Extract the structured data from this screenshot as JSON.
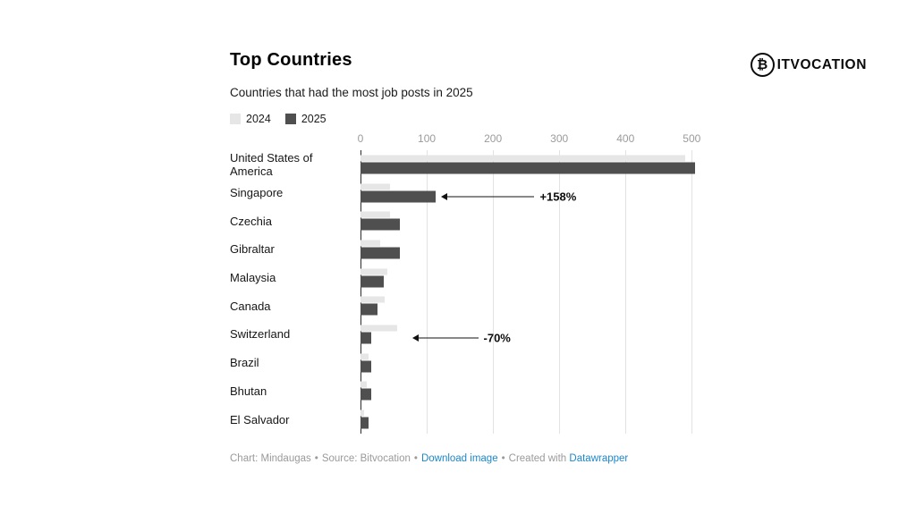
{
  "header": {
    "title": "Top Countries",
    "subtitle": "Countries that had the most job posts in 2025"
  },
  "logo": {
    "symbol": "₿",
    "text": "ITVOCATION"
  },
  "legend": [
    {
      "label": "2024",
      "color": "#e6e6e6"
    },
    {
      "label": "2025",
      "color": "#4f4f4f"
    }
  ],
  "chart_data": {
    "type": "bar",
    "orientation": "horizontal",
    "title": "Top Countries",
    "subtitle": "Countries that had the most job posts in 2025",
    "categories": [
      "United States of America",
      "Singapore",
      "Czechia",
      "Gibraltar",
      "Malaysia",
      "Canada",
      "Switzerland",
      "Brazil",
      "Bhutan",
      "El Salvador"
    ],
    "series": [
      {
        "name": "2024",
        "color": "#e6e6e6",
        "values": [
          490,
          44,
          45,
          30,
          40,
          36,
          55,
          12,
          9,
          5
        ]
      },
      {
        "name": "2025",
        "color": "#4f4f4f",
        "values": [
          505,
          113,
          60,
          60,
          35,
          26,
          16,
          16,
          16,
          12
        ]
      }
    ],
    "x_ticks": [
      0,
      100,
      200,
      300,
      400,
      500
    ],
    "xlim": [
      0,
      505
    ],
    "grid": true,
    "legend_position": "top",
    "annotations": [
      {
        "text": "+158%",
        "category": "Singapore",
        "series": "2025",
        "arrow_tip_x": 122,
        "text_x": 268
      },
      {
        "text": "-70%",
        "category": "Switzerland",
        "series": "2025",
        "arrow_tip_x": 78,
        "text_x": 183
      }
    ]
  },
  "footer": {
    "credit": "Chart: Mindaugas",
    "source": "Source: Bitvocation",
    "download_label": "Download image",
    "created_with": "Created with",
    "tool_label": "Datawrapper",
    "separator": "•"
  }
}
